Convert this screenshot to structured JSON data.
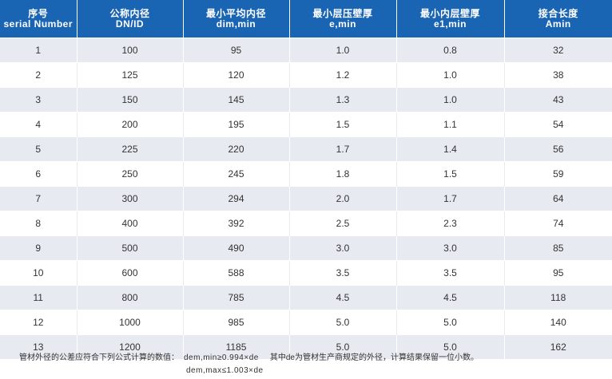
{
  "table": {
    "headers": [
      {
        "zh": "序号",
        "en": "serial Number"
      },
      {
        "zh": "公称内径",
        "en": "DN/ID"
      },
      {
        "zh": "最小平均内径",
        "en": "dim,min"
      },
      {
        "zh": "最小层压壁厚",
        "en": "e,min"
      },
      {
        "zh": "最小内层壁厚",
        "en": "e1,min"
      },
      {
        "zh": "接合长度",
        "en": "Amin"
      }
    ],
    "rows": [
      [
        "1",
        "100",
        "95",
        "1.0",
        "0.8",
        "32"
      ],
      [
        "2",
        "125",
        "120",
        "1.2",
        "1.0",
        "38"
      ],
      [
        "3",
        "150",
        "145",
        "1.3",
        "1.0",
        "43"
      ],
      [
        "4",
        "200",
        "195",
        "1.5",
        "1.1",
        "54"
      ],
      [
        "5",
        "225",
        "220",
        "1.7",
        "1.4",
        "56"
      ],
      [
        "6",
        "250",
        "245",
        "1.8",
        "1.5",
        "59"
      ],
      [
        "7",
        "300",
        "294",
        "2.0",
        "1.7",
        "64"
      ],
      [
        "8",
        "400",
        "392",
        "2.5",
        "2.3",
        "74"
      ],
      [
        "9",
        "500",
        "490",
        "3.0",
        "3.0",
        "85"
      ],
      [
        "10",
        "600",
        "588",
        "3.5",
        "3.5",
        "95"
      ],
      [
        "11",
        "800",
        "785",
        "4.5",
        "4.5",
        "118"
      ],
      [
        "12",
        "1000",
        "985",
        "5.0",
        "5.0",
        "140"
      ],
      [
        "13",
        "1200",
        "1185",
        "5.0",
        "5.0",
        "162"
      ]
    ]
  },
  "footnote": {
    "intro": "管材外径的公差应符合下列公式计算的数值：",
    "formula_min": "dem,min≥0.994×de",
    "explanation": "其中de为管材生产商规定的外径，计算结果保留一位小数。",
    "formula_max": "dem,max≤1.003×de"
  }
}
